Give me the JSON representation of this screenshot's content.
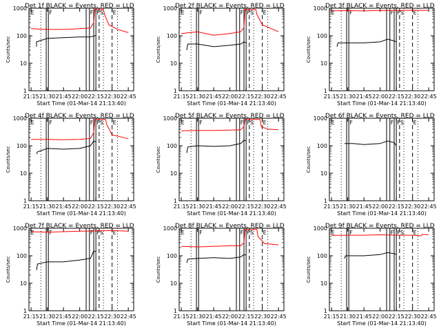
{
  "figure": {
    "x_tick_labels": [
      "21:15",
      "21:30",
      "21:45",
      "22:00",
      "22:15",
      "22:30",
      "22:45"
    ],
    "y_tick_labels": [
      "1",
      "10",
      "100",
      "1000"
    ],
    "xlabel": "Start Time (01-Mar-14 21:13:40)",
    "ylabel": "Counts/sec",
    "marker_letters": {
      "E": "E",
      "F": "F",
      "S": "S"
    },
    "colors": {
      "events": "#000000",
      "lld": "#ff0000",
      "axes": "#000000"
    }
  },
  "chart_data": [
    {
      "type": "line",
      "title": "Det 1f BLACK = Events, RED = LLD",
      "x_range_minutes": [
        "21:15",
        "22:50"
      ],
      "ylim": [
        1,
        1000
      ],
      "y_scale": "log",
      "series": [
        {
          "values_events": [
            [
              "21:20",
              40
            ],
            [
              "21:20",
              60
            ],
            [
              "21:30",
              80
            ],
            [
              "21:45",
              85
            ],
            [
              "22:00",
              90
            ],
            [
              "22:10",
              90
            ],
            [
              "22:14",
              100
            ],
            [
              "22:15",
              100
            ]
          ]
        },
        {
          "values_lld": [
            [
              "21:15",
              180
            ],
            [
              "21:30",
              170
            ],
            [
              "21:45",
              170
            ],
            [
              "22:00",
              180
            ],
            [
              "22:10",
              190
            ],
            [
              "22:13",
              300
            ],
            [
              "22:14",
              900
            ],
            [
              "22:22",
              900
            ],
            [
              "22:23",
              600
            ],
            [
              "22:27",
              250
            ],
            [
              "22:35",
              170
            ],
            [
              "22:45",
              130
            ]
          ]
        }
      ]
    },
    {
      "type": "line",
      "title": "Det 2f BLACK = Events, RED = LLD",
      "x_range_minutes": [
        "21:15",
        "22:50"
      ],
      "ylim": [
        1,
        1000
      ],
      "y_scale": "log",
      "series": [
        {
          "values_events": [
            [
              "21:20",
              30
            ],
            [
              "21:21",
              50
            ],
            [
              "21:30",
              50
            ],
            [
              "21:45",
              40
            ],
            [
              "22:00",
              45
            ],
            [
              "22:10",
              50
            ],
            [
              "22:13",
              60
            ],
            [
              "22:15",
              55
            ]
          ]
        },
        {
          "values_lld": [
            [
              "21:15",
              120
            ],
            [
              "21:30",
              140
            ],
            [
              "21:45",
              105
            ],
            [
              "22:00",
              120
            ],
            [
              "22:10",
              140
            ],
            [
              "22:13",
              200
            ],
            [
              "22:14",
              900
            ],
            [
              "22:24",
              900
            ],
            [
              "22:25",
              600
            ],
            [
              "22:30",
              250
            ],
            [
              "22:45",
              140
            ]
          ]
        }
      ]
    },
    {
      "type": "line",
      "title": "Det 3f BLACK = Events, RED = LLD",
      "x_range_minutes": [
        "21:15",
        "22:50"
      ],
      "ylim": [
        1,
        1000
      ],
      "y_scale": "log",
      "series": [
        {
          "values_events": [
            [
              "21:20",
              40
            ],
            [
              "21:21",
              55
            ],
            [
              "21:30",
              55
            ],
            [
              "21:45",
              55
            ],
            [
              "22:00",
              60
            ],
            [
              "22:07",
              75
            ],
            [
              "22:13",
              65
            ],
            [
              "22:15",
              60
            ]
          ]
        },
        {
          "values_lld": [
            [
              "21:15",
              800
            ],
            [
              "21:30",
              820
            ],
            [
              "21:45",
              800
            ],
            [
              "22:00",
              830
            ],
            [
              "22:15",
              820
            ],
            [
              "22:30",
              840
            ],
            [
              "22:45",
              830
            ]
          ]
        }
      ]
    },
    {
      "type": "line",
      "title": "Det 4f BLACK = Events, RED = LLD",
      "x_range_minutes": [
        "21:15",
        "22:50"
      ],
      "ylim": [
        1,
        1000
      ],
      "y_scale": "log",
      "series": [
        {
          "values_events": [
            [
              "21:20",
              50
            ],
            [
              "21:21",
              60
            ],
            [
              "21:30",
              80
            ],
            [
              "21:45",
              75
            ],
            [
              "22:00",
              80
            ],
            [
              "22:10",
              100
            ],
            [
              "22:13",
              150
            ],
            [
              "22:15",
              140
            ]
          ]
        },
        {
          "values_lld": [
            [
              "21:15",
              170
            ],
            [
              "21:30",
              170
            ],
            [
              "21:45",
              165
            ],
            [
              "22:00",
              170
            ],
            [
              "22:10",
              185
            ],
            [
              "22:13",
              300
            ],
            [
              "22:14",
              900
            ],
            [
              "22:24",
              900
            ],
            [
              "22:25",
              600
            ],
            [
              "22:30",
              250
            ],
            [
              "22:45",
              180
            ]
          ]
        }
      ]
    },
    {
      "type": "line",
      "title": "Det 5f BLACK = Events, RED = LLD",
      "x_range_minutes": [
        "21:15",
        "22:50"
      ],
      "ylim": [
        1,
        1000
      ],
      "y_scale": "log",
      "series": [
        {
          "values_events": [
            [
              "21:20",
              55
            ],
            [
              "21:21",
              90
            ],
            [
              "21:30",
              100
            ],
            [
              "21:45",
              95
            ],
            [
              "22:00",
              100
            ],
            [
              "22:10",
              120
            ],
            [
              "22:13",
              160
            ],
            [
              "22:15",
              150
            ]
          ]
        },
        {
          "values_lld": [
            [
              "21:15",
              350
            ],
            [
              "21:30",
              360
            ],
            [
              "21:45",
              360
            ],
            [
              "22:00",
              370
            ],
            [
              "22:10",
              380
            ],
            [
              "22:13",
              500
            ],
            [
              "22:14",
              900
            ],
            [
              "22:28",
              900
            ],
            [
              "22:29",
              500
            ],
            [
              "22:35",
              400
            ],
            [
              "22:45",
              380
            ]
          ]
        }
      ]
    },
    {
      "type": "line",
      "title": "Det 6f BLACK = Events, RED = LLD",
      "x_range_minutes": [
        "21:15",
        "22:50"
      ],
      "ylim": [
        1,
        1000
      ],
      "y_scale": "log",
      "series": [
        {
          "values_events": [
            [
              "21:27",
              120
            ],
            [
              "21:35",
              120
            ],
            [
              "21:45",
              110
            ],
            [
              "22:00",
              120
            ],
            [
              "22:07",
              150
            ],
            [
              "22:13",
              130
            ],
            [
              "22:15",
              100
            ]
          ]
        }
      ]
    },
    {
      "type": "line",
      "title": "Det 7f BLACK = Events, RED = LLD",
      "x_range_minutes": [
        "21:15",
        "22:50"
      ],
      "ylim": [
        1,
        1000
      ],
      "y_scale": "log",
      "series": [
        {
          "values_events": [
            [
              "21:20",
              30
            ],
            [
              "21:21",
              50
            ],
            [
              "21:30",
              60
            ],
            [
              "21:45",
              60
            ],
            [
              "22:00",
              70
            ],
            [
              "22:10",
              80
            ],
            [
              "22:13",
              150
            ],
            [
              "22:15",
              140
            ]
          ]
        },
        {
          "values_lld": [
            [
              "21:15",
              750
            ],
            [
              "21:30",
              720
            ],
            [
              "21:45",
              750
            ],
            [
              "22:00",
              780
            ],
            [
              "22:15",
              800
            ],
            [
              "22:30",
              820
            ],
            [
              "22:45",
              780
            ]
          ]
        }
      ]
    },
    {
      "type": "line",
      "title": "Det 8f BLACK = Events, RED = LLD",
      "x_range_minutes": [
        "21:15",
        "22:50"
      ],
      "ylim": [
        1,
        1000
      ],
      "y_scale": "log",
      "series": [
        {
          "values_events": [
            [
              "21:20",
              55
            ],
            [
              "21:21",
              75
            ],
            [
              "21:30",
              80
            ],
            [
              "21:45",
              85
            ],
            [
              "22:00",
              80
            ],
            [
              "22:10",
              90
            ],
            [
              "22:13",
              110
            ],
            [
              "22:15",
              105
            ]
          ]
        },
        {
          "values_lld": [
            [
              "21:15",
              220
            ],
            [
              "21:30",
              210
            ],
            [
              "21:45",
              220
            ],
            [
              "22:00",
              230
            ],
            [
              "22:10",
              230
            ],
            [
              "22:13",
              300
            ],
            [
              "22:14",
              900
            ],
            [
              "22:25",
              900
            ],
            [
              "22:26",
              500
            ],
            [
              "22:32",
              280
            ],
            [
              "22:45",
              250
            ]
          ]
        }
      ]
    },
    {
      "type": "line",
      "title": "Det 9f BLACK = Events, RED = LLD",
      "x_range_minutes": [
        "21:15",
        "22:50"
      ],
      "ylim": [
        1,
        1000
      ],
      "y_scale": "log",
      "series": [
        {
          "values_events": [
            [
              "21:27",
              80
            ],
            [
              "21:28",
              100
            ],
            [
              "21:35",
              100
            ],
            [
              "21:45",
              100
            ],
            [
              "22:00",
              110
            ],
            [
              "22:07",
              130
            ],
            [
              "22:13",
              120
            ],
            [
              "22:15",
              110
            ]
          ]
        },
        {
          "values_lld": [
            [
              "21:15",
              550
            ],
            [
              "21:30",
              560
            ],
            [
              "21:45",
              560
            ],
            [
              "22:00",
              580
            ],
            [
              "22:15",
              560
            ],
            [
              "22:30",
              560
            ],
            [
              "22:38",
              530
            ],
            [
              "22:39",
              600
            ],
            [
              "22:45",
              580
            ]
          ]
        }
      ]
    }
  ]
}
